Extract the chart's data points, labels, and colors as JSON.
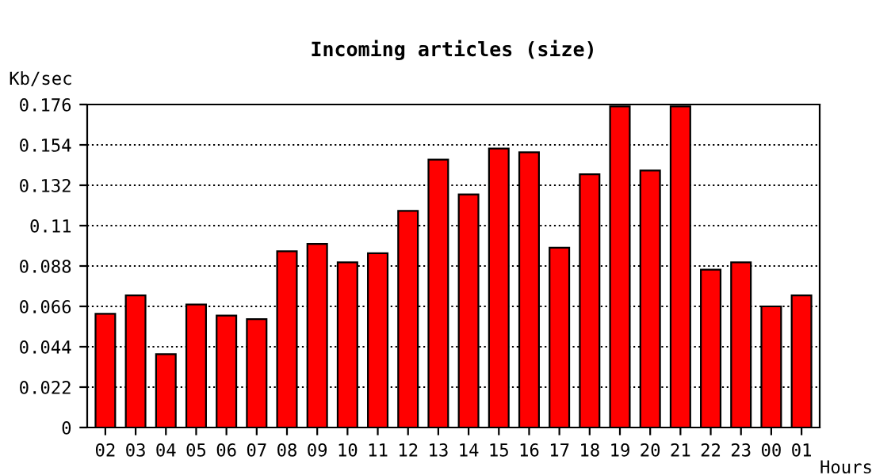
{
  "chart_data": {
    "type": "bar",
    "title": "Incoming articles (size)",
    "xlabel": "Hours",
    "ylabel": "Kb/sec",
    "categories": [
      "02",
      "03",
      "04",
      "05",
      "06",
      "07",
      "08",
      "09",
      "10",
      "11",
      "12",
      "13",
      "14",
      "15",
      "16",
      "17",
      "18",
      "19",
      "20",
      "21",
      "22",
      "23",
      "00",
      "01"
    ],
    "values": [
      0.062,
      0.072,
      0.04,
      0.067,
      0.061,
      0.059,
      0.096,
      0.1,
      0.09,
      0.095,
      0.118,
      0.146,
      0.127,
      0.152,
      0.15,
      0.098,
      0.138,
      0.175,
      0.14,
      0.175,
      0.086,
      0.09,
      0.066,
      0.072
    ],
    "color": "#ff0000",
    "ylim": [
      0,
      0.176
    ],
    "yticks": [
      0,
      0.022,
      0.044,
      0.066,
      0.088,
      0.11,
      0.132,
      0.154,
      0.176
    ],
    "grid": "y",
    "line_style": "dotted"
  }
}
